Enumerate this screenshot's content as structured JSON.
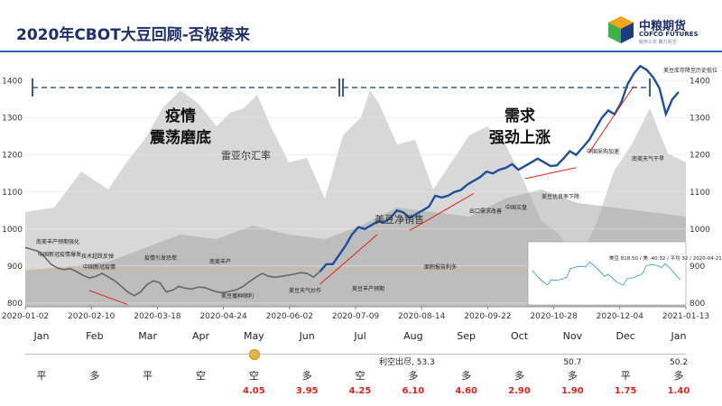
{
  "header": {
    "title": "2020年CBOT大豆回顾-否极泰来"
  },
  "logo": {
    "cn": "中粮期货",
    "en": "COFCO FUTURES",
    "tag": "服务三农 聚力而生"
  },
  "colors": {
    "price": "#1f4e9c",
    "arrow": "#e0241b",
    "shade": "#c8c8c8",
    "shade2": "#a8a8a8",
    "dash": "#3d5a8a"
  },
  "chart_data": {
    "type": "line",
    "x_ticks": [
      "2020-01-02",
      "2020-02-10",
      "2020-03-18",
      "2020-04-24",
      "2020-06-02",
      "2020-07-09",
      "2020-08-14",
      "2020-09-22",
      "2020-10-28",
      "2020-12-04",
      "2021-01-13"
    ],
    "y_ticks": [
      800,
      900,
      1000,
      1100,
      1200,
      1300,
      1400
    ],
    "ylim": [
      790,
      1460
    ],
    "series": [
      {
        "values": [
          950,
          945,
          940,
          925,
          905,
          895,
          890,
          893,
          885,
          875,
          868,
          872,
          880,
          870,
          860,
          845,
          830,
          820,
          830,
          850,
          860,
          855,
          830,
          835,
          845,
          840,
          838,
          843,
          842,
          835,
          830,
          828,
          832,
          836,
          845,
          858,
          870,
          880,
          872,
          870,
          872,
          875,
          878,
          882,
          880,
          870,
          885,
          905,
          905,
          930,
          955,
          985,
          1005,
          1000,
          1010,
          1020,
          1018,
          1030,
          1050,
          1045,
          1030,
          1040,
          1050,
          1060,
          1090,
          1085,
          1090,
          1100,
          1105,
          1120,
          1130,
          1140,
          1155,
          1150,
          1160,
          1165,
          1175,
          1160,
          1170,
          1180,
          1190,
          1180,
          1170,
          1172,
          1190,
          1210,
          1200,
          1220,
          1240,
          1270,
          1300,
          1320,
          1310,
          1340,
          1390,
          1420,
          1440,
          1430,
          1410,
          1380,
          1310,
          1350,
          1370
        ]
      }
    ],
    "overlays": {
      "rmb_rate": {
        "label": "雷亚尔汇率"
      },
      "us_net_sales": {
        "label": "美豆净销售"
      }
    },
    "phases": [
      {
        "label": "疫情",
        "label2": "震荡磨底"
      },
      {
        "label": "需求",
        "label2": "强劲上涨"
      }
    ],
    "annotations": [
      "南美丰产预期强化",
      "中国新冠疫情爆发",
      "技术超跌反弹",
      "中国新冠疫情",
      "疫情引发恐慌",
      "南美丰产",
      "美豆播种顺利",
      "美豆天气炒作",
      "美豆丰产预期",
      "面积报告利多",
      "出口需求改善",
      "中国买盘",
      "美豆优良率下降",
      "中国采购加速",
      "南美天气干旱",
      "美豆库存降至历史低位"
    ],
    "inset": {
      "note": "美豆 818.50 / 美 -40.32 / 平均 32 / 2020-04-21"
    }
  },
  "timeline": {
    "months": [
      "Jan",
      "Feb",
      "Mar",
      "Apr",
      "May",
      "Jun",
      "Jul",
      "Aug",
      "Sep",
      "Oct",
      "Nov",
      "Dec",
      "Jan"
    ],
    "stance": [
      "平",
      "多",
      "平",
      "空",
      "空",
      "多",
      "空",
      "多",
      "多",
      "多",
      "多",
      "平",
      "多"
    ],
    "values": [
      "",
      "",
      "",
      "",
      "4.05",
      "3.95",
      "4.25",
      "6.10",
      "4.60",
      "2.90",
      "1.90",
      "1.75",
      "1.40"
    ],
    "note": "利空出尽, 53.3",
    "nov_value": "50.7",
    "jan_value": "50.2"
  }
}
